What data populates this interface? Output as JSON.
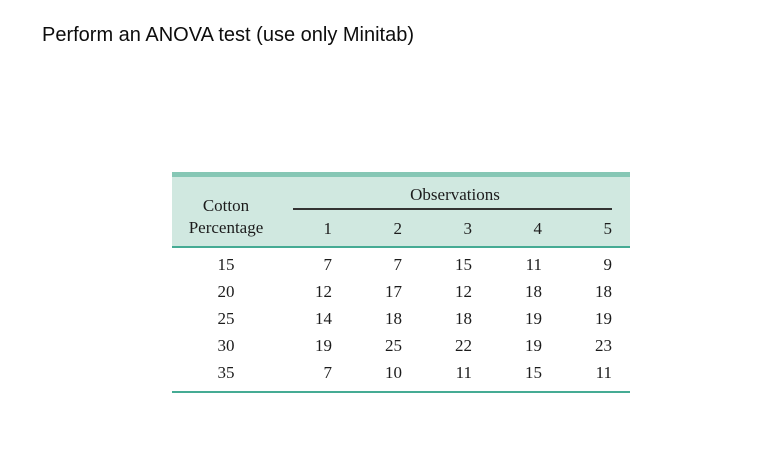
{
  "page": {
    "title": "Perform an ANOVA test (use only Minitab)"
  },
  "table": {
    "corner_label": {
      "line1": "Cotton",
      "line2": "Percentage"
    },
    "group_header": "Observations",
    "column_headers": [
      "1",
      "2",
      "3",
      "4",
      "5"
    ],
    "rows": [
      {
        "label": "15",
        "values": [
          "7",
          "7",
          "15",
          "11",
          "9"
        ]
      },
      {
        "label": "20",
        "values": [
          "12",
          "17",
          "12",
          "18",
          "18"
        ]
      },
      {
        "label": "25",
        "values": [
          "14",
          "18",
          "18",
          "19",
          "19"
        ]
      },
      {
        "label": "30",
        "values": [
          "19",
          "25",
          "22",
          "19",
          "23"
        ]
      },
      {
        "label": "35",
        "values": [
          "7",
          "10",
          "11",
          "15",
          "11"
        ]
      }
    ]
  },
  "colors": {
    "header_background": "#d0e8e0",
    "top_rule": "#86c7b5",
    "divider_rule": "#45ab94",
    "observations_rule": "#333333",
    "text": "#1c1c1c"
  }
}
